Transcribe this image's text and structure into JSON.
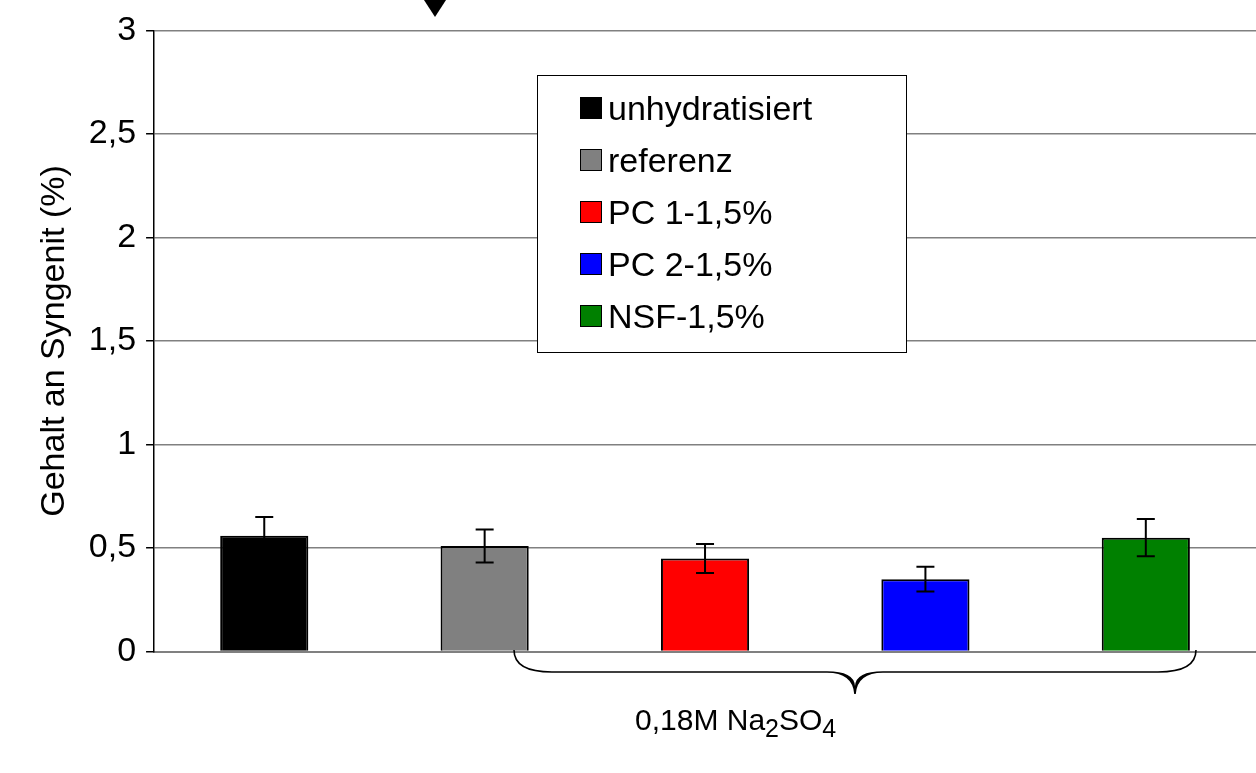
{
  "chart_data": {
    "type": "bar",
    "ylabel": "Gehalt an Syngenit (%)",
    "categories": [
      null,
      null,
      null,
      null,
      null
    ],
    "series": [
      {
        "name": "unhydratisiert",
        "color": "#000000",
        "values": [
          0.56,
          null,
          null,
          null,
          null
        ],
        "errors": [
          0.09,
          null,
          null,
          null,
          null
        ]
      },
      {
        "name": "referenz",
        "color": "#808080",
        "values": [
          null,
          0.51,
          null,
          null,
          null
        ],
        "errors": [
          null,
          0.08,
          null,
          null,
          null
        ]
      },
      {
        "name": "PC 1-1,5%",
        "color": "#ff0000",
        "values": [
          null,
          null,
          0.45,
          null,
          null
        ],
        "errors": [
          null,
          null,
          0.07,
          null,
          null
        ]
      },
      {
        "name": "PC 2-1,5%",
        "color": "#0000ff",
        "values": [
          null,
          null,
          null,
          0.35,
          null
        ],
        "errors": [
          null,
          null,
          null,
          0.06,
          null
        ]
      },
      {
        "name": "NSF-1,5%",
        "color": "#008000",
        "values": [
          null,
          null,
          null,
          null,
          0.55
        ],
        "errors": [
          null,
          null,
          null,
          null,
          0.09
        ]
      }
    ],
    "ylim": [
      0,
      3
    ],
    "yticks": [
      0,
      {
        "value": 0.5,
        "label": "0,5"
      },
      1,
      {
        "value": 1.5,
        "label": "1,5"
      },
      2,
      {
        "value": 2.5,
        "label": "2,5"
      },
      3
    ],
    "grid": "y",
    "legend": "top",
    "annotations": [
      "0,18M Na$_{2}$SO$_{4}$"
    ]
  }
}
